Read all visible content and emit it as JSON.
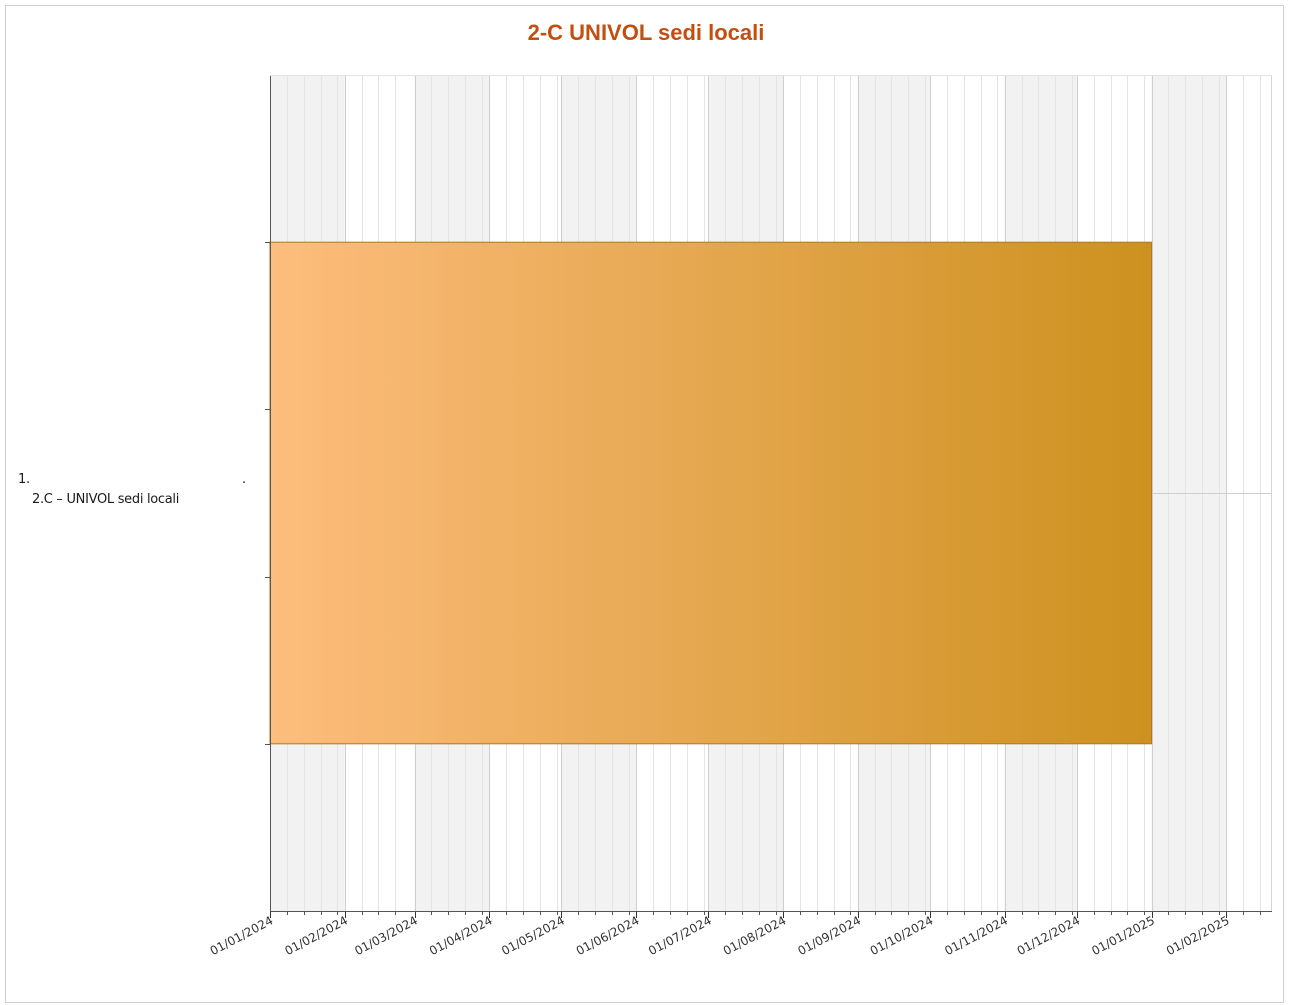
{
  "chart_data": {
    "type": "bar",
    "orientation": "horizontal",
    "title": "2-C UNIVOL sedi locali",
    "xlabel": "",
    "ylabel": "",
    "x_axis": {
      "type": "date",
      "range": [
        "2024-01-01",
        "2025-02-20"
      ],
      "tick_dates": [
        "2024-01-01",
        "2024-02-01",
        "2024-03-01",
        "2024-04-01",
        "2024-05-01",
        "2024-06-01",
        "2024-07-01",
        "2024-08-01",
        "2024-09-01",
        "2024-10-01",
        "2024-11-01",
        "2024-12-01",
        "2025-01-01",
        "2025-02-01"
      ],
      "tick_labels": [
        "01/01/2024",
        "01/02/2024",
        "01/03/2024",
        "01/04/2024",
        "01/05/2024",
        "01/06/2024",
        "01/07/2024",
        "01/08/2024",
        "01/09/2024",
        "01/10/2024",
        "01/11/2024",
        "01/12/2024",
        "01/01/2025",
        "01/02/2025"
      ],
      "minor_grid": "weekly"
    },
    "categories": [
      {
        "number": "1.",
        "label": "2.C – UNIVOL sedi locali",
        "trailing_mark": "."
      }
    ],
    "bars": [
      {
        "category_index": 0,
        "start": "2024-01-01",
        "end": "2025-01-01",
        "color_start": "#fdbd7d",
        "color_end": "#cc911f",
        "edge_color": "#b07a1a"
      }
    ],
    "grid": true,
    "alternating_month_bands": true,
    "colors": {
      "title": "#c24f10",
      "band": "#f2f2f2",
      "grid_major": "#cfcfcf",
      "grid_minor": "#e4e4e4"
    }
  }
}
